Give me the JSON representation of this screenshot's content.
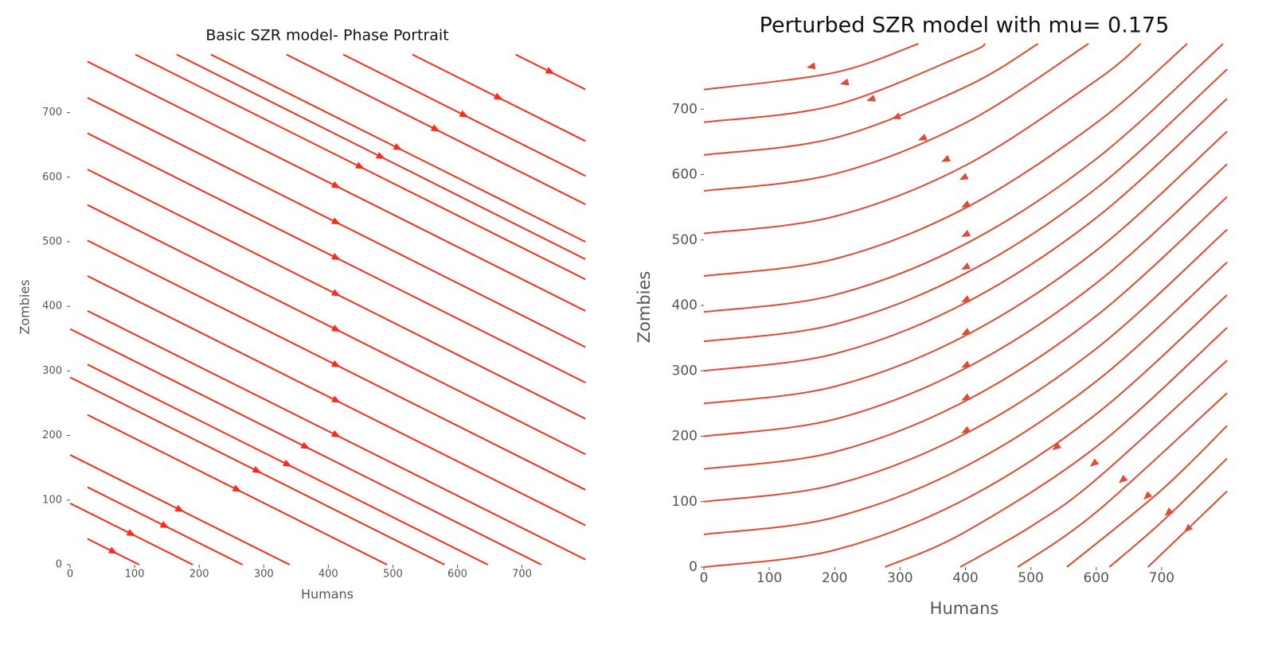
{
  "chart_data": [
    {
      "type": "streamplot",
      "title": "Basic SZR model- Phase Portrait",
      "xlabel": "Humans",
      "ylabel": "Zombies",
      "color": "#ff2a1a",
      "xlim": [
        0,
        798
      ],
      "ylim": [
        0,
        798
      ],
      "xticks": [
        0,
        100,
        200,
        300,
        400,
        500,
        600,
        700
      ],
      "yticks": [
        0,
        100,
        200,
        300,
        400,
        500,
        600,
        700
      ],
      "streamlines": [
        {
          "x": [
            27,
            798
          ],
          "y": [
            779,
            393
          ]
        },
        {
          "x": [
            27,
            798
          ],
          "y": [
            723,
            337
          ]
        },
        {
          "x": [
            27,
            798
          ],
          "y": [
            668,
            282
          ]
        },
        {
          "x": [
            27,
            798
          ],
          "y": [
            612,
            226
          ]
        },
        {
          "x": [
            27,
            798
          ],
          "y": [
            557,
            171
          ]
        },
        {
          "x": [
            27,
            798
          ],
          "y": [
            502,
            116
          ]
        },
        {
          "x": [
            27,
            798
          ],
          "y": [
            447,
            61
          ]
        },
        {
          "x": [
            27,
            798
          ],
          "y": [
            393,
            8
          ]
        },
        {
          "x": [
            27,
            647
          ],
          "y": [
            310,
            0
          ]
        },
        {
          "x": [
            27,
            491
          ],
          "y": [
            232,
            0
          ]
        },
        {
          "x": [
            27,
            267
          ],
          "y": [
            120,
            0
          ]
        },
        {
          "x": [
            27,
            107
          ],
          "y": [
            40,
            0
          ]
        },
        {
          "x": [
            0,
            730
          ],
          "y": [
            365,
            0
          ]
        },
        {
          "x": [
            0,
            580
          ],
          "y": [
            290,
            0
          ]
        },
        {
          "x": [
            0,
            340
          ],
          "y": [
            170,
            0
          ]
        },
        {
          "x": [
            0,
            190
          ],
          "y": [
            95,
            0
          ]
        },
        {
          "x": [
            101,
            798
          ],
          "y": [
            790,
            442
          ]
        },
        {
          "x": [
            165,
            798
          ],
          "y": [
            790,
            473
          ]
        },
        {
          "x": [
            218,
            798
          ],
          "y": [
            790,
            500
          ]
        },
        {
          "x": [
            335,
            798
          ],
          "y": [
            790,
            558
          ]
        },
        {
          "x": [
            423,
            798
          ],
          "y": [
            790,
            602
          ]
        },
        {
          "x": [
            530,
            798
          ],
          "y": [
            790,
            656
          ]
        },
        {
          "x": [
            690,
            798
          ],
          "y": [
            790,
            736
          ]
        }
      ]
    },
    {
      "type": "streamplot",
      "title": "Perturbed SZR model with mu= 0.175",
      "xlabel": "Humans",
      "ylabel": "Zombies",
      "color": "#e24a33",
      "xlim": [
        0,
        800
      ],
      "ylim": [
        0,
        800
      ],
      "xticks": [
        0,
        100,
        200,
        300,
        400,
        500,
        600,
        700
      ],
      "yticks": [
        0,
        100,
        200,
        300,
        400,
        500,
        600,
        700
      ],
      "streamlines": [
        {
          "x": [
            0,
            200,
            328
          ],
          "y": [
            730,
            756,
            800
          ]
        },
        {
          "x": [
            0,
            200,
            400,
            430
          ],
          "y": [
            680,
            706,
            784,
            800
          ]
        },
        {
          "x": [
            0,
            200,
            400,
            511
          ],
          "y": [
            630,
            656,
            734,
            800
          ]
        },
        {
          "x": [
            0,
            200,
            400,
            588
          ],
          "y": [
            575,
            601,
            679,
            800
          ]
        },
        {
          "x": [
            0,
            200,
            400,
            600,
            668
          ],
          "y": [
            510,
            536,
            614,
            744,
            800
          ]
        },
        {
          "x": [
            0,
            200,
            400,
            600,
            739
          ],
          "y": [
            445,
            471,
            549,
            679,
            800
          ]
        },
        {
          "x": [
            0,
            200,
            400,
            600,
            794
          ],
          "y": [
            390,
            416,
            494,
            624,
            800
          ]
        },
        {
          "x": [
            0,
            200,
            400,
            600,
            800
          ],
          "y": [
            345,
            371,
            449,
            579,
            761
          ]
        },
        {
          "x": [
            0,
            200,
            400,
            600,
            800
          ],
          "y": [
            300,
            326,
            404,
            534,
            716
          ]
        },
        {
          "x": [
            0,
            200,
            400,
            600,
            800
          ],
          "y": [
            250,
            276,
            354,
            484,
            666
          ]
        },
        {
          "x": [
            0,
            200,
            400,
            600,
            800
          ],
          "y": [
            200,
            226,
            304,
            434,
            616
          ]
        },
        {
          "x": [
            0,
            200,
            400,
            600,
            800
          ],
          "y": [
            150,
            176,
            254,
            384,
            566
          ]
        },
        {
          "x": [
            0,
            200,
            400,
            600,
            800
          ],
          "y": [
            100,
            126,
            204,
            334,
            516
          ]
        },
        {
          "x": [
            0,
            200,
            400,
            600,
            800
          ],
          "y": [
            50,
            76,
            154,
            284,
            466
          ]
        },
        {
          "x": [
            0,
            200,
            400,
            600,
            800
          ],
          "y": [
            0,
            26,
            104,
            234,
            416
          ]
        },
        {
          "x": [
            277,
            400,
            600,
            800
          ],
          "y": [
            0,
            54,
            184,
            366
          ]
        },
        {
          "x": [
            392,
            500,
            600,
            800
          ],
          "y": [
            0,
            62,
            134,
            316
          ]
        },
        {
          "x": [
            480,
            600,
            800
          ],
          "y": [
            0,
            84,
            266
          ]
        },
        {
          "x": [
            555,
            700,
            800
          ],
          "y": [
            0,
            118,
            216
          ]
        },
        {
          "x": [
            620,
            700,
            800
          ],
          "y": [
            0,
            69,
            166
          ]
        },
        {
          "x": [
            679,
            800
          ],
          "y": [
            0,
            116
          ]
        }
      ]
    }
  ]
}
